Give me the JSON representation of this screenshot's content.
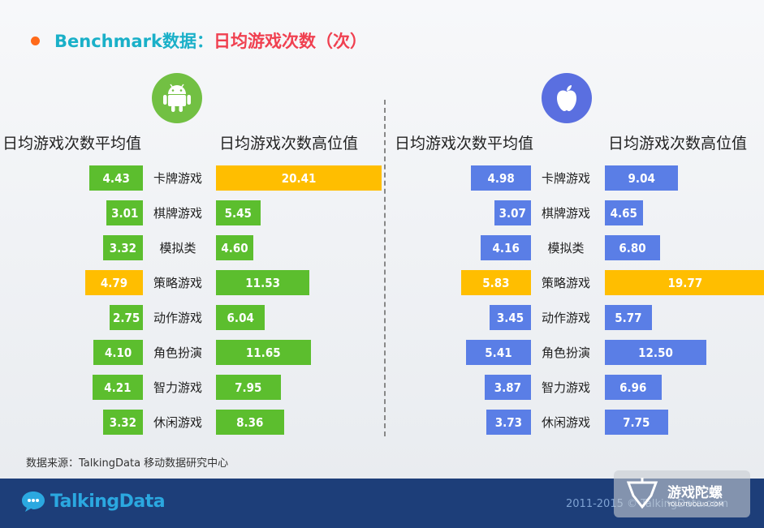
{
  "title": {
    "part1": "Benchmark数据：",
    "part2": "日均游戏次数（次）"
  },
  "headers": {
    "avg": "日均游戏次数平均值",
    "high": "日均游戏次数高位值"
  },
  "colors": {
    "android": "#5cbe2e",
    "ios": "#5a7ee6",
    "highlight": "#ffbe00"
  },
  "chart_data": [
    {
      "type": "bar",
      "platform": "Android",
      "categories": [
        "卡牌游戏",
        "棋牌游戏",
        "模拟类",
        "策略游戏",
        "动作游戏",
        "角色扮演",
        "智力游戏",
        "休闲游戏"
      ],
      "series": [
        {
          "name": "日均游戏次数平均值",
          "values": [
            4.43,
            3.01,
            3.32,
            4.79,
            2.75,
            4.1,
            4.21,
            3.32
          ],
          "highlight_index": 3
        },
        {
          "name": "日均游戏次数高位值",
          "values": [
            20.41,
            5.45,
            4.6,
            11.53,
            6.04,
            11.65,
            7.95,
            8.36
          ],
          "highlight_index": 0
        }
      ]
    },
    {
      "type": "bar",
      "platform": "iOS",
      "categories": [
        "卡牌游戏",
        "棋牌游戏",
        "模拟类",
        "策略游戏",
        "动作游戏",
        "角色扮演",
        "智力游戏",
        "休闲游戏"
      ],
      "series": [
        {
          "name": "日均游戏次数平均值",
          "values": [
            4.98,
            3.07,
            4.16,
            5.83,
            3.45,
            5.41,
            3.87,
            3.73
          ],
          "highlight_index": 3
        },
        {
          "name": "日均游戏次数高位值",
          "values": [
            9.04,
            4.65,
            6.8,
            19.77,
            5.77,
            12.5,
            6.96,
            7.75
          ],
          "highlight_index": 3
        }
      ]
    }
  ],
  "source": "数据来源：TalkingData 移动数据研究中心",
  "footer": {
    "logo": "TalkingData",
    "copyright": "2011-2015 © TalkingData.com"
  },
  "watermark": {
    "cn": "游戏陀螺",
    "en": "YOUXITUOLUO.COM"
  }
}
